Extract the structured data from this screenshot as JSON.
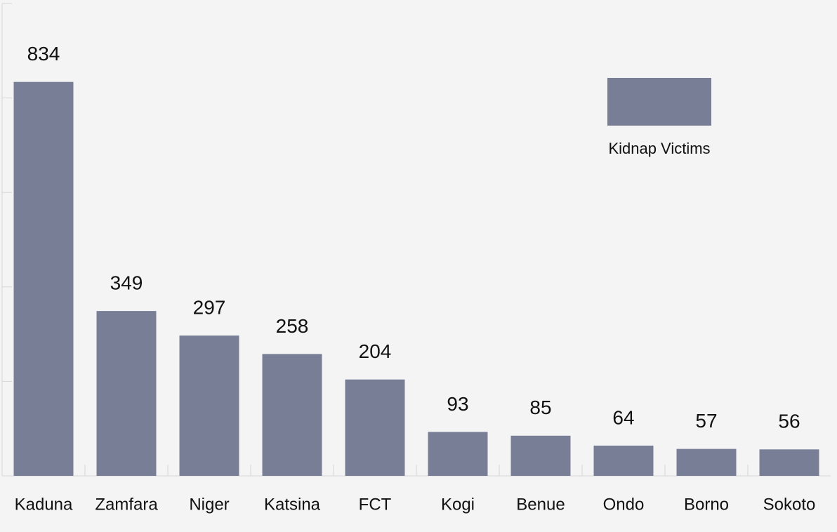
{
  "chart_data": {
    "type": "bar",
    "categories": [
      "Kaduna",
      "Zamfara",
      "Niger",
      "Katsina",
      "FCT",
      "Kogi",
      "Benue",
      "Ondo",
      "Borno",
      "Sokoto"
    ],
    "series": [
      {
        "name": "Kidnap Victims",
        "color": "#777e96",
        "values": [
          834,
          349,
          297,
          258,
          204,
          93,
          85,
          64,
          57,
          56
        ]
      }
    ],
    "ylim": [
      0,
      1000
    ],
    "yticks": [
      0,
      200,
      400,
      600,
      800,
      1000
    ],
    "legend": "upper right",
    "data_labels": true
  }
}
